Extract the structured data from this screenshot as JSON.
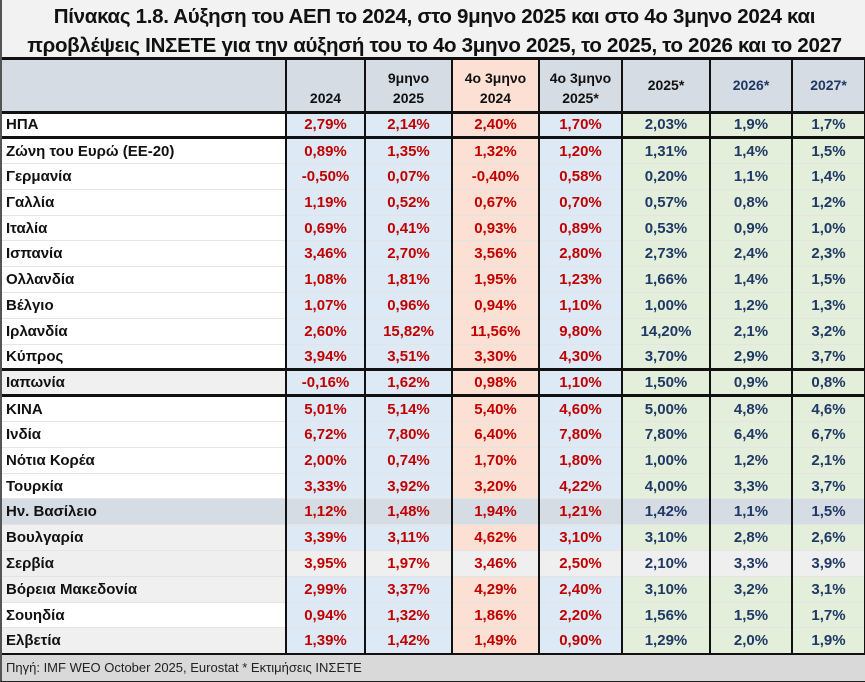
{
  "title": {
    "line1": "Πίνακας 1.8.  Αύξηση του ΑΕΠ το 2024, στο 9μηνο 2025 και στο 4ο 3μηνο 2024 και",
    "line2": "προβλέψεις ΙΝΣΕΤΕ για την αύξησή του το 4ο 3μηνο 2025, το 2025, το 2026 και το 2027"
  },
  "columns": [
    {
      "line1": "",
      "line2": "2024"
    },
    {
      "line1": "9μηνο",
      "line2": "2025"
    },
    {
      "line1": "4ο 3μηνο",
      "line2": "2024"
    },
    {
      "line1": "4ο 3μηνο",
      "line2": "2025*"
    },
    {
      "line1": "2025*",
      "line2": ""
    },
    {
      "line1": "2026*",
      "line2": ""
    },
    {
      "line1": "2027*",
      "line2": ""
    }
  ],
  "rows": [
    {
      "country": "ΗΠΑ",
      "values": [
        "2,79%",
        "2,14%",
        "2,40%",
        "1,70%",
        "2,03%",
        "1,9%",
        "1,7%"
      ]
    },
    {
      "country": "Ζώνη του Ευρώ  (ΕΕ-20)",
      "values": [
        "0,89%",
        "1,35%",
        "1,32%",
        "1,20%",
        "1,31%",
        "1,4%",
        "1,5%"
      ]
    },
    {
      "country": "Γερμανία",
      "values": [
        "-0,50%",
        "0,07%",
        "-0,40%",
        "0,58%",
        "0,20%",
        "1,1%",
        "1,4%"
      ]
    },
    {
      "country": "Γαλλία",
      "values": [
        "1,19%",
        "0,52%",
        "0,67%",
        "0,70%",
        "0,57%",
        "0,8%",
        "1,2%"
      ]
    },
    {
      "country": "Ιταλία",
      "values": [
        "0,69%",
        "0,41%",
        "0,93%",
        "0,89%",
        "0,53%",
        "0,9%",
        "1,0%"
      ]
    },
    {
      "country": "Ισπανία",
      "values": [
        "3,46%",
        "2,70%",
        "3,56%",
        "2,80%",
        "2,73%",
        "2,4%",
        "2,3%"
      ]
    },
    {
      "country": "Ολλανδία",
      "values": [
        "1,08%",
        "1,81%",
        "1,95%",
        "1,23%",
        "1,66%",
        "1,4%",
        "1,5%"
      ]
    },
    {
      "country": "Βέλγιο",
      "values": [
        "1,07%",
        "0,96%",
        "0,94%",
        "1,10%",
        "1,00%",
        "1,2%",
        "1,3%"
      ]
    },
    {
      "country": "Ιρλανδία",
      "values": [
        "2,60%",
        "15,82%",
        "11,56%",
        "9,80%",
        "14,20%",
        "2,1%",
        "3,2%"
      ]
    },
    {
      "country": "Κύπρος",
      "values": [
        "3,94%",
        "3,51%",
        "3,30%",
        "4,30%",
        "3,70%",
        "2,9%",
        "3,7%"
      ]
    },
    {
      "country": "Ιαπωνία",
      "values": [
        "-0,16%",
        "1,62%",
        "0,98%",
        "1,10%",
        "1,50%",
        "0,9%",
        "0,8%"
      ]
    },
    {
      "country": "ΚΙΝΑ",
      "values": [
        "5,01%",
        "5,14%",
        "5,40%",
        "4,60%",
        "5,00%",
        "4,8%",
        "4,6%"
      ]
    },
    {
      "country": "Ινδία",
      "values": [
        "6,72%",
        "7,80%",
        "6,40%",
        "7,80%",
        "7,80%",
        "6,4%",
        "6,7%"
      ]
    },
    {
      "country": "Νότια Κορέα",
      "values": [
        "2,00%",
        "0,74%",
        "1,70%",
        "1,80%",
        "1,00%",
        "1,2%",
        "2,1%"
      ]
    },
    {
      "country": "Τουρκία",
      "values": [
        "3,33%",
        "3,92%",
        "3,20%",
        "4,22%",
        "4,00%",
        "3,3%",
        "3,7%"
      ]
    },
    {
      "country": "Ην. Βασίλειο",
      "values": [
        "1,12%",
        "1,48%",
        "1,94%",
        "1,21%",
        "1,42%",
        "1,1%",
        "1,5%"
      ]
    },
    {
      "country": "Βουλγαρία",
      "values": [
        "3,39%",
        "3,11%",
        "4,62%",
        "3,10%",
        "3,10%",
        "2,8%",
        "2,6%"
      ]
    },
    {
      "country": "Σερβία",
      "values": [
        "3,95%",
        "1,97%",
        "3,46%",
        "2,50%",
        "2,10%",
        "3,3%",
        "3,9%"
      ]
    },
    {
      "country": "Βόρεια Μακεδονία",
      "values": [
        "2,99%",
        "3,37%",
        "4,29%",
        "2,40%",
        "3,10%",
        "3,2%",
        "3,1%"
      ]
    },
    {
      "country": "Σουηδία",
      "values": [
        "0,94%",
        "1,32%",
        "1,86%",
        "2,20%",
        "1,56%",
        "1,5%",
        "1,7%"
      ]
    },
    {
      "country": "Ελβετία",
      "values": [
        "1,39%",
        "1,42%",
        "1,49%",
        "0,90%",
        "1,29%",
        "2,0%",
        "1,9%"
      ]
    }
  ],
  "footer": "Πηγή:  IMF WEO October 2025, Eurostat * Εκτιμήσεις ΙΝΣΕΤΕ",
  "colors": {
    "actual_text": "#c00000",
    "forecast_text": "#1f3864",
    "actual_bg": "#dde9f5",
    "q4_2024_bg": "#fbe0d3",
    "forecast_bg": "#e3eedb",
    "header_bg": "#d6dce4"
  }
}
